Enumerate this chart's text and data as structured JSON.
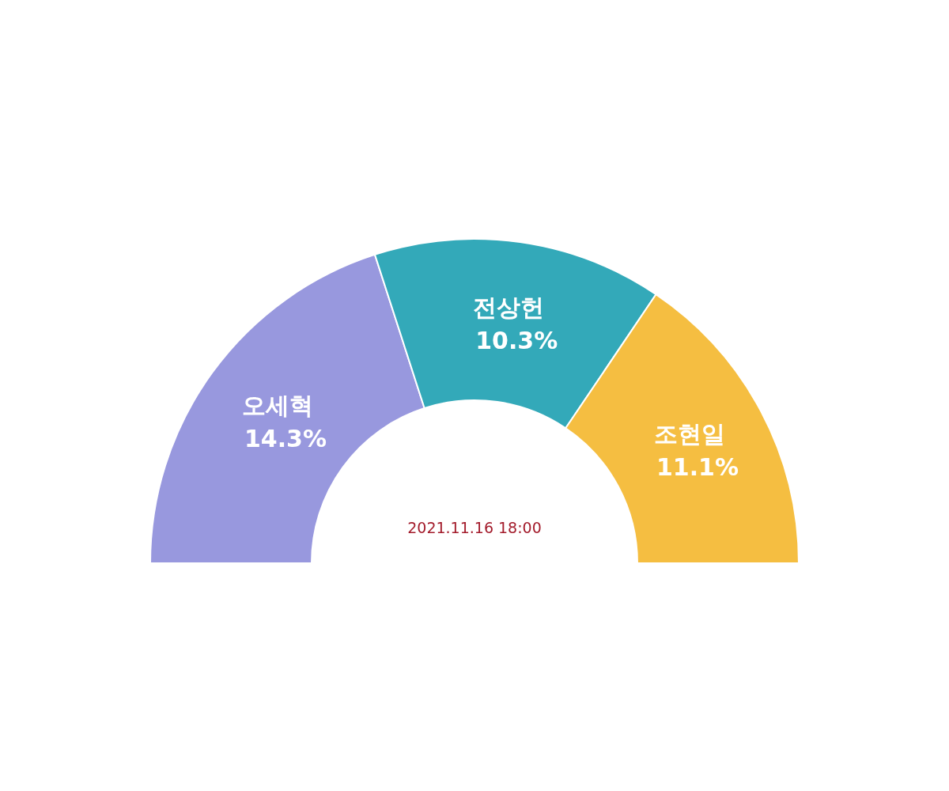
{
  "chart_data": {
    "type": "donut",
    "categories": [
      "오세혁",
      "전상헌",
      "조현일"
    ],
    "values": [
      14.3,
      10.3,
      11.1
    ],
    "value_labels": [
      "14.3%",
      "10.3%",
      "11.1%"
    ],
    "colors": [
      "#9898de",
      "#33a9b9",
      "#f5be41"
    ],
    "annotations": [
      "2021.11.16 18:00"
    ]
  }
}
